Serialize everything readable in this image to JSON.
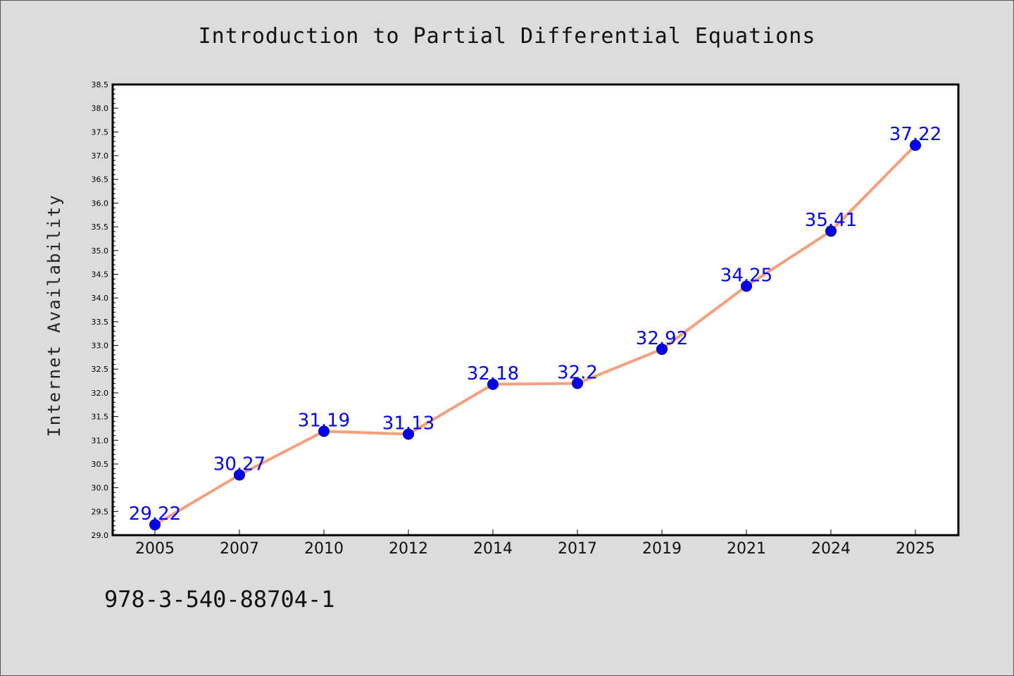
{
  "chart_data": {
    "type": "line",
    "title": "Introduction to Partial Differential Equations",
    "xlabel": "",
    "ylabel": "Internet Availability",
    "categories": [
      "2005",
      "2007",
      "2010",
      "2012",
      "2014",
      "2017",
      "2019",
      "2021",
      "2024",
      "2025"
    ],
    "series": [
      {
        "values": [
          29.22,
          30.27,
          31.19,
          31.13,
          32.18,
          32.2,
          32.92,
          34.25,
          35.41,
          37.22
        ],
        "labels": [
          "29.22",
          "30.27",
          "31.19",
          "31.13",
          "32.18",
          "32.2",
          "32.92",
          "34.25",
          "35.41",
          "37.22"
        ]
      }
    ],
    "ylim": [
      29.0,
      38.5
    ],
    "yticks": [
      "29.0",
      "29.5",
      "30.0",
      "30.5",
      "31.0",
      "31.5",
      "32.0",
      "32.5",
      "33.0",
      "33.5",
      "34.0",
      "34.5",
      "35.0",
      "35.5",
      "36.0",
      "36.5",
      "37.0",
      "37.5",
      "38.0",
      "38.5"
    ],
    "grid": false,
    "legend": "none"
  },
  "footer": {
    "isbn": "978-3-540-88704-1"
  },
  "colors": {
    "line": "#f4a07f",
    "marker": "#0000ee",
    "marker_edge": "#00008b",
    "data_label": "#0000ee",
    "background": "#dcdcdc",
    "plot_area": "#ffffff"
  }
}
